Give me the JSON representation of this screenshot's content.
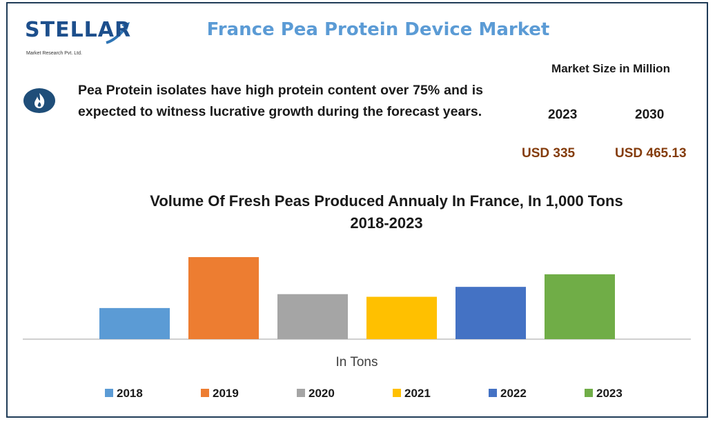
{
  "logo": {
    "name": "STELLAR",
    "subtitle": "Market Research Pvt. Ltd."
  },
  "header": {
    "title": "France Pea Protein Device Market"
  },
  "fact": {
    "icon": "flame-icon",
    "text": "Pea Protein isolates have high protein content over 75% and is expected to witness lucrative growth during the forecast years."
  },
  "market_size": {
    "label": "Market Size in Million",
    "year_1": "2023",
    "year_2": "2030",
    "value_1": "USD 335",
    "value_2": "USD 465.13"
  },
  "colors": {
    "title_blue": "#5b9bd5",
    "value_brown": "#843c0c",
    "logo_blue": "#1d4f8c",
    "border": "#1f3b57"
  },
  "chart_data": {
    "type": "bar",
    "title": "Volume Of Fresh Peas Produced Annualy In France, In 1,000 Tons 2018-2023",
    "title_line1": "Volume Of Fresh Peas Produced Annualy In France, In 1,000 Tons",
    "title_line2": "2018-2023",
    "xlabel": "In Tons",
    "ylabel": "",
    "ylim": [
      0,
      125
    ],
    "grid": false,
    "legend_position": "bottom",
    "series": [
      {
        "name": "2018",
        "color": "#5b9bd5",
        "value": 47
      },
      {
        "name": "2019",
        "color": "#ed7d31",
        "value": 124
      },
      {
        "name": "2020",
        "color": "#a5a5a5",
        "value": 68
      },
      {
        "name": "2021",
        "color": "#ffc000",
        "value": 64
      },
      {
        "name": "2022",
        "color": "#4472c4",
        "value": 79
      },
      {
        "name": "2023",
        "color": "#70ad47",
        "value": 98
      }
    ]
  }
}
